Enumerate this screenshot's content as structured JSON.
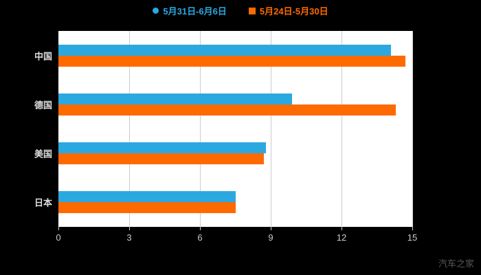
{
  "watermark": "汽车之家",
  "legend": [
    {
      "label": "5月31日-6月6日",
      "color": "#2BA8E0",
      "marker": "circle"
    },
    {
      "label": "5月24日-5月30日",
      "color": "#FF6A00",
      "marker": "square"
    }
  ],
  "chart_data": {
    "type": "bar",
    "orientation": "horizontal",
    "title": "",
    "xlabel": "",
    "ylabel": "",
    "categories": [
      "中国",
      "德国",
      "美国",
      "日本"
    ],
    "series": [
      {
        "name": "5月31日-6月6日",
        "color": "#2BA8E0",
        "values": [
          14.1,
          9.9,
          8.8,
          7.5
        ]
      },
      {
        "name": "5月24日-5月30日",
        "color": "#FF6A00",
        "values": [
          14.7,
          14.3,
          8.7,
          7.5
        ]
      }
    ],
    "xlim": [
      0,
      15
    ],
    "xticks": [
      0,
      3,
      6,
      9,
      12,
      15
    ],
    "grid": true,
    "legend_position": "top",
    "plot_bg": "#ffffff",
    "page_bg": "#000000"
  }
}
